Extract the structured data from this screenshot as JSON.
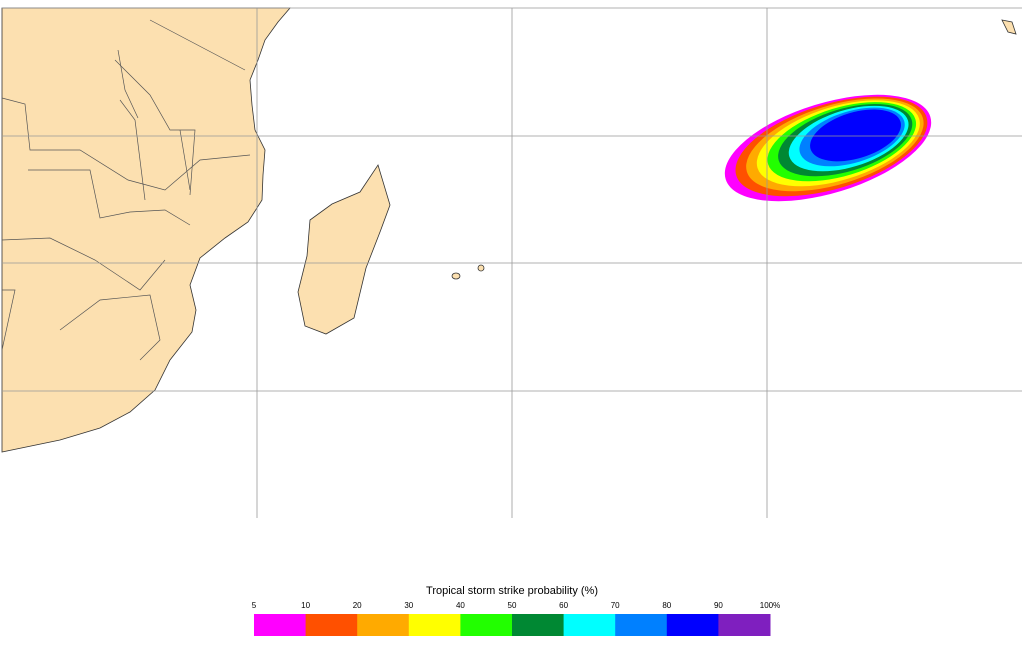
{
  "legend": {
    "title": "Tropical storm strike probability (%)",
    "ticks": [
      5,
      10,
      20,
      30,
      40,
      50,
      60,
      70,
      80,
      90,
      {
        "value": 100,
        "label": "100%"
      }
    ],
    "colors": [
      "#ff00ff",
      "#ff5000",
      "#ffaa00",
      "#ffff00",
      "#22ff00",
      "#008833",
      "#00ffff",
      "#0080ff",
      "#0000ff",
      "#7f1fbf"
    ]
  }
}
